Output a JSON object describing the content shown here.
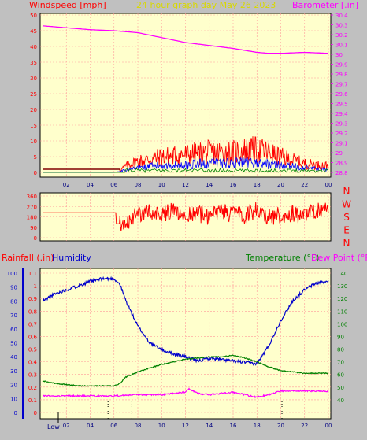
{
  "header": {
    "left_label": "Windspeed [mph]",
    "center_label": "24 hour graph day   May 26 2023",
    "right_label": "Barometer [.in]"
  },
  "colors": {
    "background": "#c0c0c0",
    "plot_bg": "#ffffcc",
    "grid": "#ff9999",
    "windspeed": "#ff0000",
    "gust_avg": "#0000ff",
    "wind_low": "#008000",
    "barometer": "#ff00ff",
    "direction": "#ff0000",
    "humidity": "#0000cc",
    "temperature": "#008000",
    "dewpoint": "#ff00ff",
    "rainfall": "#ff0000",
    "axis_text": "#000080"
  },
  "chart_data": [
    {
      "type": "line",
      "title": "24 hour graph day   May 26 2023",
      "ylabel": "Windspeed [mph]",
      "y2label": "Barometer [.in]",
      "x_ticks": [
        "02",
        "04",
        "06",
        "08",
        "10",
        "12",
        "14",
        "16",
        "18",
        "20",
        "22",
        "00"
      ],
      "ylim": [
        0,
        50
      ],
      "y_ticks": [
        "0",
        "5",
        "10",
        "15",
        "20",
        "25",
        "30",
        "35",
        "40",
        "45",
        "50"
      ],
      "y2lim": [
        28.8,
        30.4
      ],
      "y2_ticks": [
        "28.8",
        "28.9",
        "29",
        "29.1",
        "29.2",
        "29.3",
        "29.4",
        "29.5",
        "29.6",
        "29.7",
        "29.8",
        "29.9",
        "30",
        "30.1",
        "30.2",
        "30.3",
        "30.4"
      ],
      "series": [
        {
          "axis": "y2",
          "x": [
            0,
            2,
            4,
            6,
            8,
            10,
            12,
            14,
            16,
            18,
            19,
            20,
            22,
            24
          ],
          "values": [
            30.29,
            30.27,
            30.25,
            30.24,
            30.22,
            30.17,
            30.12,
            30.09,
            30.06,
            30.02,
            30.01,
            30.01,
            30.02,
            30.01
          ]
        },
        {
          "axis": "y",
          "x": [
            0,
            2,
            4,
            6,
            6.5,
            7,
            8,
            10,
            12,
            14,
            16,
            17,
            18,
            19,
            20,
            22,
            24
          ],
          "values": [
            1,
            1,
            1,
            1,
            1,
            3,
            5,
            7,
            8,
            9,
            9,
            10,
            10,
            9,
            7,
            4,
            3
          ]
        },
        {
          "axis": "y",
          "x": [
            0,
            2,
            4,
            6,
            7,
            8,
            10,
            12,
            14,
            16,
            18,
            20,
            22,
            24
          ],
          "values": [
            0,
            0,
            0,
            0,
            1,
            2,
            3,
            3,
            4,
            4,
            4,
            3,
            2,
            1
          ]
        }
      ]
    },
    {
      "type": "line",
      "y_ticks": [
        "360",
        "270",
        "180",
        "90",
        "0"
      ],
      "ylim": [
        0,
        360
      ],
      "compass": [
        "N",
        "W",
        "S",
        "E",
        "N"
      ],
      "series": [
        {
          "x": [
            0,
            2,
            4,
            5.5,
            6.2,
            6.5,
            7,
            8,
            9,
            10,
            11,
            12,
            13,
            14,
            15,
            16,
            17,
            18,
            19,
            20,
            21,
            22,
            23,
            24
          ],
          "values": [
            215,
            215,
            215,
            215,
            215,
            120,
            130,
            200,
            230,
            200,
            240,
            190,
            210,
            180,
            230,
            200,
            190,
            240,
            180,
            200,
            210,
            190,
            230,
            240
          ]
        }
      ]
    },
    {
      "type": "line",
      "left_label": "Rainfall (.in)",
      "humidity_label": "Humidity",
      "temp_label": "Temperature (°F)",
      "dew_label": "Dew Point (°F)",
      "x_ticks": [
        "02",
        "04",
        "06",
        "08",
        "10",
        "12",
        "14",
        "16",
        "18",
        "20",
        "22",
        "00"
      ],
      "low_label": "Low",
      "rain_ticks": [
        "0",
        "0.1",
        "0.2",
        "0.3",
        "0.4",
        "0.5",
        "0.6",
        "0.7",
        "0.8",
        "0.9",
        "1",
        "1.1"
      ],
      "hum_ticks": [
        "0",
        "10",
        "20",
        "30",
        "40",
        "50",
        "60",
        "70",
        "80",
        "90",
        "100"
      ],
      "temp_ticks": [
        "40",
        "50",
        "60",
        "70",
        "80",
        "90",
        "100",
        "110",
        "120",
        "130",
        "140"
      ],
      "humidity": {
        "x": [
          0,
          1,
          2,
          3,
          4,
          5,
          6,
          6.5,
          7,
          8,
          9,
          10,
          11,
          12,
          13,
          14,
          15,
          16,
          17,
          18,
          19,
          20,
          21,
          22,
          23,
          24
        ],
        "values": [
          80,
          85,
          88,
          91,
          94,
          96,
          96,
          92,
          80,
          62,
          50,
          45,
          42,
          40,
          37,
          39,
          38,
          37,
          36,
          35,
          48,
          66,
          80,
          88,
          93,
          94
        ]
      },
      "temperature": {
        "x": [
          0,
          1,
          2,
          3,
          4,
          5,
          6,
          6.5,
          7,
          8,
          9,
          10,
          11,
          12,
          13,
          14,
          15,
          16,
          17,
          18,
          19,
          20,
          21,
          22,
          23,
          24
        ],
        "values": [
          55,
          53,
          52,
          51,
          51,
          51,
          51,
          53,
          58,
          62,
          65,
          68,
          70,
          72,
          73,
          74,
          74,
          75,
          73,
          70,
          66,
          63,
          62,
          61,
          61,
          61
        ]
      },
      "dewpoint": {
        "x": [
          0,
          2,
          4,
          6,
          8,
          10,
          12,
          12.3,
          13,
          14,
          16,
          18,
          19,
          20,
          21,
          22,
          24
        ],
        "values": [
          43,
          43,
          43,
          43,
          44,
          44,
          46,
          49,
          45,
          44,
          46,
          42,
          44,
          47,
          47,
          47,
          47
        ]
      },
      "rain_markers": [
        5.5,
        7.5,
        20.1
      ]
    }
  ]
}
